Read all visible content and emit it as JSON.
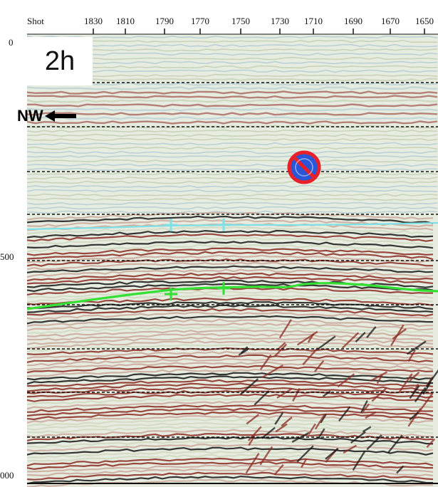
{
  "axis": {
    "shot_label": "Shot",
    "shot_ticks": [
      "1830",
      "1810",
      "1790",
      "1770",
      "1750",
      "1730",
      "1710",
      "1690",
      "1670",
      "1650"
    ],
    "depth_ticks": [
      "0",
      "500",
      "000"
    ]
  },
  "panel_label": "2h",
  "direction_label": "NW",
  "icons": {
    "direction": "arrow-left-icon",
    "prohibition": "no-entry-sign-icon"
  },
  "colors": {
    "horizon_upper": "#7fe0e6",
    "horizon_lower": "#33e033",
    "no_sign_red": "#e8202a",
    "no_sign_fill": "#2a56d8",
    "seismic_red": "#8a2a22",
    "seismic_black": "#141414",
    "seismic_pale": "#cfd9c0"
  }
}
